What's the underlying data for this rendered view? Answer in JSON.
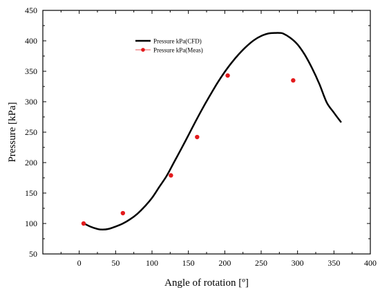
{
  "chart_data": {
    "type": "line",
    "xlabel": "Angle of rotation [º]",
    "ylabel": "Pressure [kPa]",
    "xlim": [
      -50,
      400
    ],
    "ylim": [
      50,
      450
    ],
    "xticks": [
      0,
      50,
      100,
      150,
      200,
      250,
      300,
      350,
      400
    ],
    "yticks": [
      50,
      100,
      150,
      200,
      250,
      300,
      350,
      400,
      450
    ],
    "grid": false,
    "legend_position": "top-center",
    "series": [
      {
        "name": "Pressure kPa(CFD)",
        "style": "line",
        "color": "#000000",
        "x": [
          5,
          15,
          25,
          32,
          40,
          50,
          60,
          70,
          80,
          90,
          100,
          110,
          120,
          130,
          140,
          150,
          160,
          170,
          180,
          190,
          200,
          210,
          220,
          230,
          240,
          250,
          260,
          270,
          275,
          280,
          290,
          300,
          310,
          320,
          330,
          340,
          350,
          360
        ],
        "y": [
          101,
          95,
          91,
          90,
          91,
          95,
          100,
          107,
          116,
          128,
          142,
          160,
          178,
          200,
          222,
          245,
          268,
          290,
          311,
          331,
          349,
          365,
          379,
          391,
          401,
          408,
          412,
          413,
          413,
          412,
          405,
          394,
          377,
          355,
          329,
          299,
          282,
          266
        ]
      },
      {
        "name": "Pressure kPa(Meas)",
        "style": "markers",
        "color": "#e31a1c",
        "x": [
          6,
          60,
          126,
          162,
          204,
          294
        ],
        "y": [
          100,
          117,
          179,
          242,
          343,
          335
        ]
      }
    ]
  }
}
